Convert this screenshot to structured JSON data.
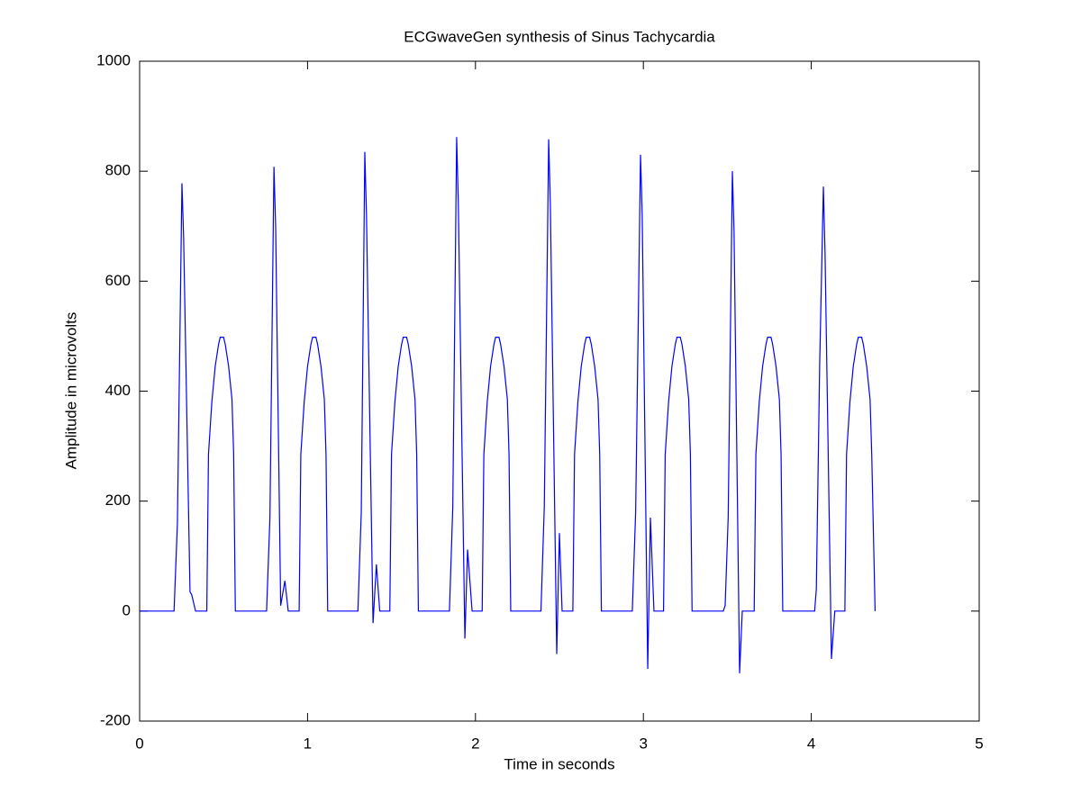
{
  "chart_data": {
    "type": "line",
    "title": "ECGwaveGen synthesis of Sinus Tachycardia",
    "x_label": "Time in seconds",
    "y_label": "Amplitude in microvolts",
    "color": "#0000ff",
    "x": [
      0,
      0.205,
      0.225,
      0.252,
      0.262,
      0.3,
      0.31,
      0.333,
      0.4,
      0.41,
      0.43,
      0.45,
      0.47,
      0.48,
      0.5,
      0.51,
      0.53,
      0.55,
      0.56,
      0.57,
      0.756,
      0.776,
      0.8,
      0.81,
      0.84,
      0.865,
      0.885,
      0.95,
      0.96,
      0.98,
      1.0,
      1.02,
      1.03,
      1.05,
      1.06,
      1.08,
      1.1,
      1.11,
      1.12,
      1.3,
      1.32,
      1.341,
      1.351,
      1.39,
      1.41,
      1.43,
      1.49,
      1.5,
      1.52,
      1.54,
      1.56,
      1.57,
      1.59,
      1.6,
      1.62,
      1.64,
      1.65,
      1.66,
      1.845,
      1.865,
      1.888,
      1.898,
      1.937,
      1.953,
      1.98,
      2.04,
      2.05,
      2.07,
      2.09,
      2.11,
      2.12,
      2.14,
      2.15,
      2.17,
      2.19,
      2.2,
      2.21,
      2.39,
      2.41,
      2.436,
      2.446,
      2.484,
      2.5,
      2.516,
      2.58,
      2.59,
      2.61,
      2.63,
      2.65,
      2.66,
      2.68,
      2.69,
      2.71,
      2.73,
      2.74,
      2.75,
      2.934,
      2.954,
      2.983,
      2.993,
      3.026,
      3.042,
      3.063,
      3.12,
      3.13,
      3.15,
      3.17,
      3.19,
      3.2,
      3.22,
      3.23,
      3.25,
      3.27,
      3.28,
      3.29,
      3.476,
      3.487,
      3.505,
      3.53,
      3.54,
      3.573,
      3.589,
      3.66,
      3.67,
      3.69,
      3.71,
      3.73,
      3.74,
      3.76,
      3.77,
      3.79,
      3.81,
      3.82,
      3.83,
      4.02,
      4.03,
      4.05,
      4.072,
      4.082,
      4.12,
      4.14,
      4.2,
      4.21,
      4.23,
      4.25,
      4.27,
      4.28,
      4.3,
      4.31,
      4.33,
      4.35,
      4.36,
      4.38
    ],
    "values": [
      0,
      0,
      160,
      778,
      680,
      35,
      30,
      0,
      0,
      285,
      380,
      445,
      485,
      498,
      498,
      485,
      445,
      385,
      285,
      0,
      0,
      170,
      808,
      700,
      10,
      55,
      0,
      0,
      285,
      380,
      445,
      485,
      498,
      498,
      485,
      445,
      385,
      285,
      0,
      0,
      180,
      835,
      720,
      -22,
      85,
      0,
      0,
      285,
      380,
      445,
      485,
      498,
      498,
      485,
      445,
      385,
      285,
      0,
      0,
      190,
      862,
      740,
      -50,
      112,
      0,
      0,
      285,
      380,
      445,
      485,
      498,
      498,
      485,
      445,
      385,
      285,
      0,
      0,
      190,
      858,
      740,
      -78,
      142,
      0,
      0,
      285,
      380,
      445,
      485,
      498,
      498,
      485,
      445,
      385,
      285,
      0,
      0,
      180,
      830,
      720,
      -105,
      170,
      0,
      0,
      285,
      380,
      445,
      485,
      498,
      498,
      485,
      445,
      385,
      285,
      0,
      0,
      10,
      170,
      800,
      690,
      -113,
      0,
      0,
      285,
      380,
      445,
      485,
      498,
      498,
      485,
      445,
      385,
      285,
      0,
      0,
      40,
      450,
      772,
      650,
      -87,
      0,
      0,
      285,
      380,
      445,
      485,
      498,
      498,
      485,
      445,
      385,
      285,
      0
    ],
    "xlim": [
      0,
      5
    ],
    "xticks": [
      0,
      1,
      2,
      3,
      4,
      5
    ],
    "ylim": [
      -200,
      1000
    ],
    "yticks": [
      -200,
      0,
      200,
      400,
      600,
      800,
      1000
    ],
    "grid": false
  }
}
